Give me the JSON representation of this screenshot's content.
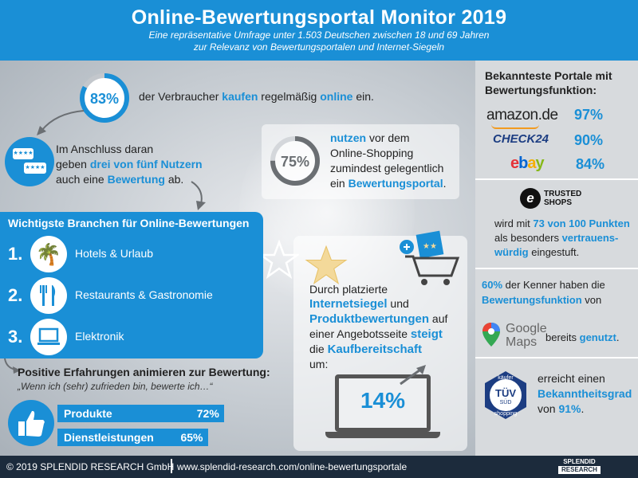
{
  "header": {
    "title": "Online-Bewertungsportal Monitor 2019",
    "subtitle_1": "Eine repräsentative Umfrage unter 1.503 Deutschen zwischen 18 und 69 Jahren",
    "subtitle_2": "zur Relevanz von Bewertungsportalen und Internet-Siegeln"
  },
  "stat_buy": {
    "value": "83%",
    "t1": "der Verbraucher ",
    "b1": "kaufen",
    "t2": " regelmäßig ",
    "b2": "online",
    "t3": " ein.",
    "fraction": 0.83
  },
  "stat_rate": {
    "l1": "Im Anschluss daran",
    "l2a": "geben ",
    "l2b": "drei von fünf Nutzern",
    "l3a": "auch eine ",
    "l3b": "Bewertung",
    "l3c": " ab."
  },
  "stat_use": {
    "value": "75%",
    "l1a": "nutzen",
    "l1b": " vor dem",
    "l2": "Online-Shopping",
    "l3": "zumindest gelegentlich",
    "l4a": "ein ",
    "l4b": "Bewertungsportal",
    "l4c": ".",
    "fraction": 0.75
  },
  "branchen": {
    "title": "Wichtigste Branchen für Online-Bewertungen",
    "items": [
      {
        "num": "1.",
        "label": "Hotels & Urlaub",
        "icon": "palm-tree-icon"
      },
      {
        "num": "2.",
        "label": "Restaurants & Gastronomie",
        "icon": "cutlery-icon"
      },
      {
        "num": "3.",
        "label": "Elektronik",
        "icon": "laptop-icon"
      }
    ]
  },
  "seal": {
    "l1": "Durch platzierte",
    "l2a": "Internetsiegel",
    "l2b": " und",
    "l3a": "Produktbewertungen",
    "l3b": " auf",
    "l4a": "einer Angebotsseite ",
    "l4b": "steigt",
    "l5a": "die ",
    "l5b": "Kaufbereitschaft",
    "l6": "um:",
    "value": "14%"
  },
  "positive": {
    "title": "Positive Erfahrungen animieren zur Bewertung:",
    "quote": "„Wenn ich (sehr) zufrieden bin, bewerte ich…“",
    "bars": [
      {
        "label": "Produkte",
        "value": "72%",
        "fraction": 0.72
      },
      {
        "label": "Dienstleistungen",
        "value": "65%",
        "fraction": 0.65
      }
    ]
  },
  "portals": {
    "title": "Bekannteste Portale mit Bewertungsfunktion:",
    "items": [
      {
        "name": "amazon.de",
        "value": "97%"
      },
      {
        "name": "CHECK24",
        "value": "90%"
      },
      {
        "name": "ebay",
        "value": "84%"
      }
    ]
  },
  "trusted": {
    "logo_l1": "TRUSTED",
    "logo_l2": "SHOPS",
    "l1a": "wird mit ",
    "l1b": "73 von 100 Punkten",
    "l2a": "als besonders ",
    "l2b": "vertrauens-",
    "l3a": "würdig",
    "l3b": " eingestuft."
  },
  "maps": {
    "l1a": "60%",
    "l1b": " der Kenner haben die",
    "l2": "Bewertungsfunktion",
    "l2b": " von",
    "logo_l1": "Google",
    "logo_l2": "Maps",
    "l3a": "bereits ",
    "l3b": "genutzt",
    "l3c": "."
  },
  "tuv": {
    "logo_top": "käufer",
    "logo_mid": "TÜV",
    "logo_sub": "SÜD",
    "logo_bottom": "shopping",
    "l1": "erreicht einen",
    "l2": "Bekanntheitsgrad",
    "l3a": "von ",
    "l3b": "91%",
    "l3c": "."
  },
  "footer": {
    "copyright": "© 2019 SPLENDID RESEARCH GmbH",
    "url": "www.splendid-research.com/online-bewertungsportale",
    "logo_l1": "SPLENDID",
    "logo_l2": "RESEARCH"
  },
  "colors": {
    "accent": "#1a8fd6",
    "dark": "#1c2b3c",
    "grey": "#6b6f73"
  }
}
